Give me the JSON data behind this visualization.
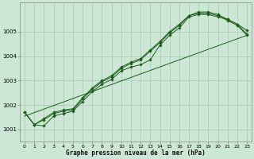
{
  "title": "Graphe pression niveau de la mer (hPa)",
  "bg_color": "#cce8d4",
  "grid_color": "#a8c8b8",
  "line_color": "#1e5c1e",
  "marker_color": "#1e5c1e",
  "xlim": [
    -0.5,
    23.5
  ],
  "ylim": [
    1000.5,
    1006.2
  ],
  "xticks": [
    0,
    1,
    2,
    3,
    4,
    5,
    6,
    7,
    8,
    9,
    10,
    11,
    12,
    13,
    14,
    15,
    16,
    17,
    18,
    19,
    20,
    21,
    22,
    23
  ],
  "yticks": [
    1001,
    1002,
    1003,
    1004,
    1005
  ],
  "series1": {
    "x": [
      0,
      1,
      2,
      3,
      4,
      5,
      6,
      7,
      8,
      9,
      10,
      11,
      12,
      13,
      14,
      15,
      16,
      17,
      18,
      19,
      20,
      21,
      22,
      23
    ],
    "y": [
      1001.7,
      1001.2,
      1001.15,
      1001.55,
      1001.65,
      1001.75,
      1002.15,
      1002.55,
      1002.85,
      1003.05,
      1003.4,
      1003.55,
      1003.65,
      1003.85,
      1004.45,
      1004.85,
      1005.15,
      1005.6,
      1005.7,
      1005.7,
      1005.6,
      1005.5,
      1005.3,
      1005.05
    ]
  },
  "series2": {
    "x": [
      0,
      1,
      2,
      3,
      4,
      5,
      6,
      7,
      8,
      9,
      10,
      11,
      12,
      13,
      14,
      15,
      16,
      17,
      18,
      19,
      20,
      21,
      22,
      23
    ],
    "y": [
      1001.7,
      1001.2,
      1001.4,
      1001.65,
      1001.75,
      1001.8,
      1002.25,
      1002.65,
      1002.95,
      1003.15,
      1003.5,
      1003.7,
      1003.85,
      1004.2,
      1004.55,
      1004.95,
      1005.25,
      1005.65,
      1005.75,
      1005.75,
      1005.65,
      1005.45,
      1005.25,
      1004.85
    ]
  },
  "series3": {
    "x": [
      0,
      1,
      2,
      3,
      4,
      5,
      6,
      7,
      8,
      9,
      10,
      11,
      12,
      13,
      14,
      15,
      16,
      17,
      18,
      19,
      20,
      21,
      22,
      23
    ],
    "y": [
      1001.7,
      1001.2,
      1001.45,
      1001.7,
      1001.8,
      1001.85,
      1002.3,
      1002.7,
      1003.0,
      1003.2,
      1003.55,
      1003.75,
      1003.9,
      1004.25,
      1004.6,
      1005.0,
      1005.3,
      1005.65,
      1005.8,
      1005.8,
      1005.7,
      1005.5,
      1005.3,
      1004.9
    ]
  },
  "series4": {
    "x": [
      0,
      23
    ],
    "y": [
      1001.55,
      1004.85
    ]
  }
}
